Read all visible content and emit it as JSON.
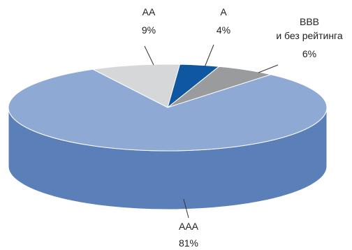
{
  "chart_data": {
    "type": "pie",
    "style": "3d",
    "slices": [
      {
        "name": "AAA",
        "value": 81,
        "label": "81%",
        "color": "#8ea9d3",
        "side_color": "#5b7fb8"
      },
      {
        "name": "AA",
        "value": 9,
        "label": "9%",
        "color": "#d6d7d8",
        "side_color": "#a7a8aa"
      },
      {
        "name": "A",
        "value": 4,
        "label": "4%",
        "color": "#0f57a0",
        "side_color": "#0a3d72"
      },
      {
        "name": "BBB",
        "name_line2": "и без рейтинга",
        "value": 6,
        "label": "6%",
        "color": "#9a9b9d",
        "side_color": "#6f7072"
      }
    ]
  }
}
